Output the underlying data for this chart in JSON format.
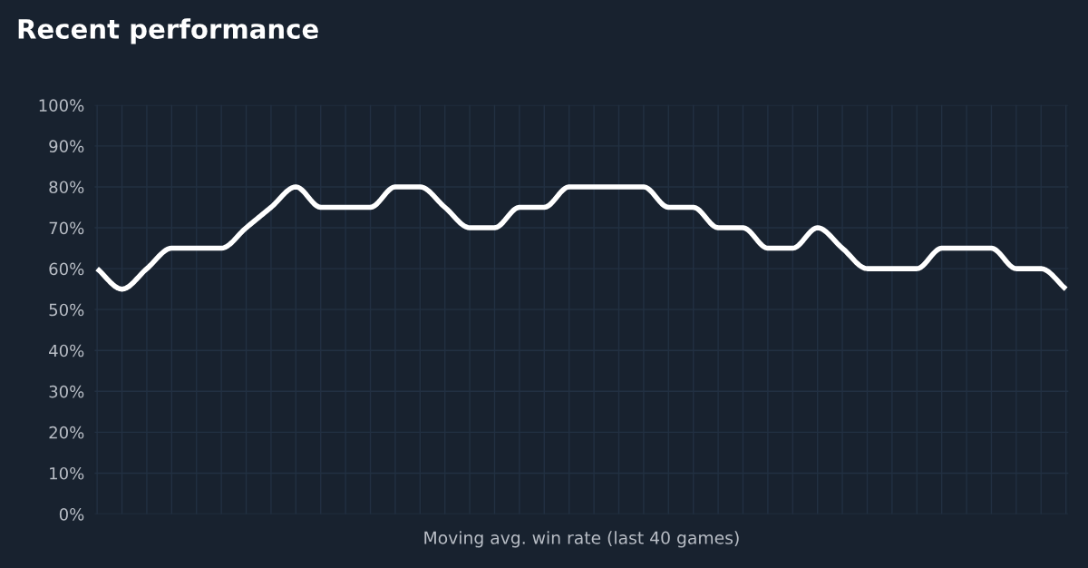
{
  "chart_data": {
    "type": "line",
    "title": "Recent performance",
    "xlabel": "Moving avg. win rate (last 40 games)",
    "categories": [
      null,
      null,
      null,
      null,
      null,
      null,
      null,
      null,
      null,
      null,
      null,
      null,
      null,
      null,
      null,
      null,
      null,
      null,
      null,
      null,
      null,
      null,
      null,
      null,
      null,
      null,
      null,
      null,
      null,
      null,
      null,
      null,
      null,
      null,
      null,
      null,
      null,
      null,
      null,
      null
    ],
    "series": [
      {
        "color": "#ffffff",
        "values": [
          60,
          55,
          60,
          65,
          65,
          65,
          70,
          75,
          80,
          75,
          75,
          75,
          80,
          80,
          75,
          70,
          70,
          75,
          75,
          80,
          80,
          80,
          80,
          75,
          75,
          70,
          70,
          65,
          65,
          70,
          65,
          60,
          60,
          60,
          65,
          65,
          65,
          60,
          60,
          55
        ]
      }
    ],
    "ylim": [
      0,
      100
    ],
    "yticks": [
      {
        "value": 0,
        "label": "0%"
      },
      {
        "value": 10,
        "label": "10%"
      },
      {
        "value": 20,
        "label": "20%"
      },
      {
        "value": 30,
        "label": "30%"
      },
      {
        "value": 40,
        "label": "40%"
      },
      {
        "value": 50,
        "label": "50%"
      },
      {
        "value": 60,
        "label": "60%"
      },
      {
        "value": 70,
        "label": "70%"
      },
      {
        "value": 80,
        "label": "80%"
      },
      {
        "value": 90,
        "label": "90%"
      },
      {
        "value": 100,
        "label": "100%"
      }
    ],
    "grid": true,
    "marker": "none",
    "line_style": "solid",
    "legend": false
  }
}
